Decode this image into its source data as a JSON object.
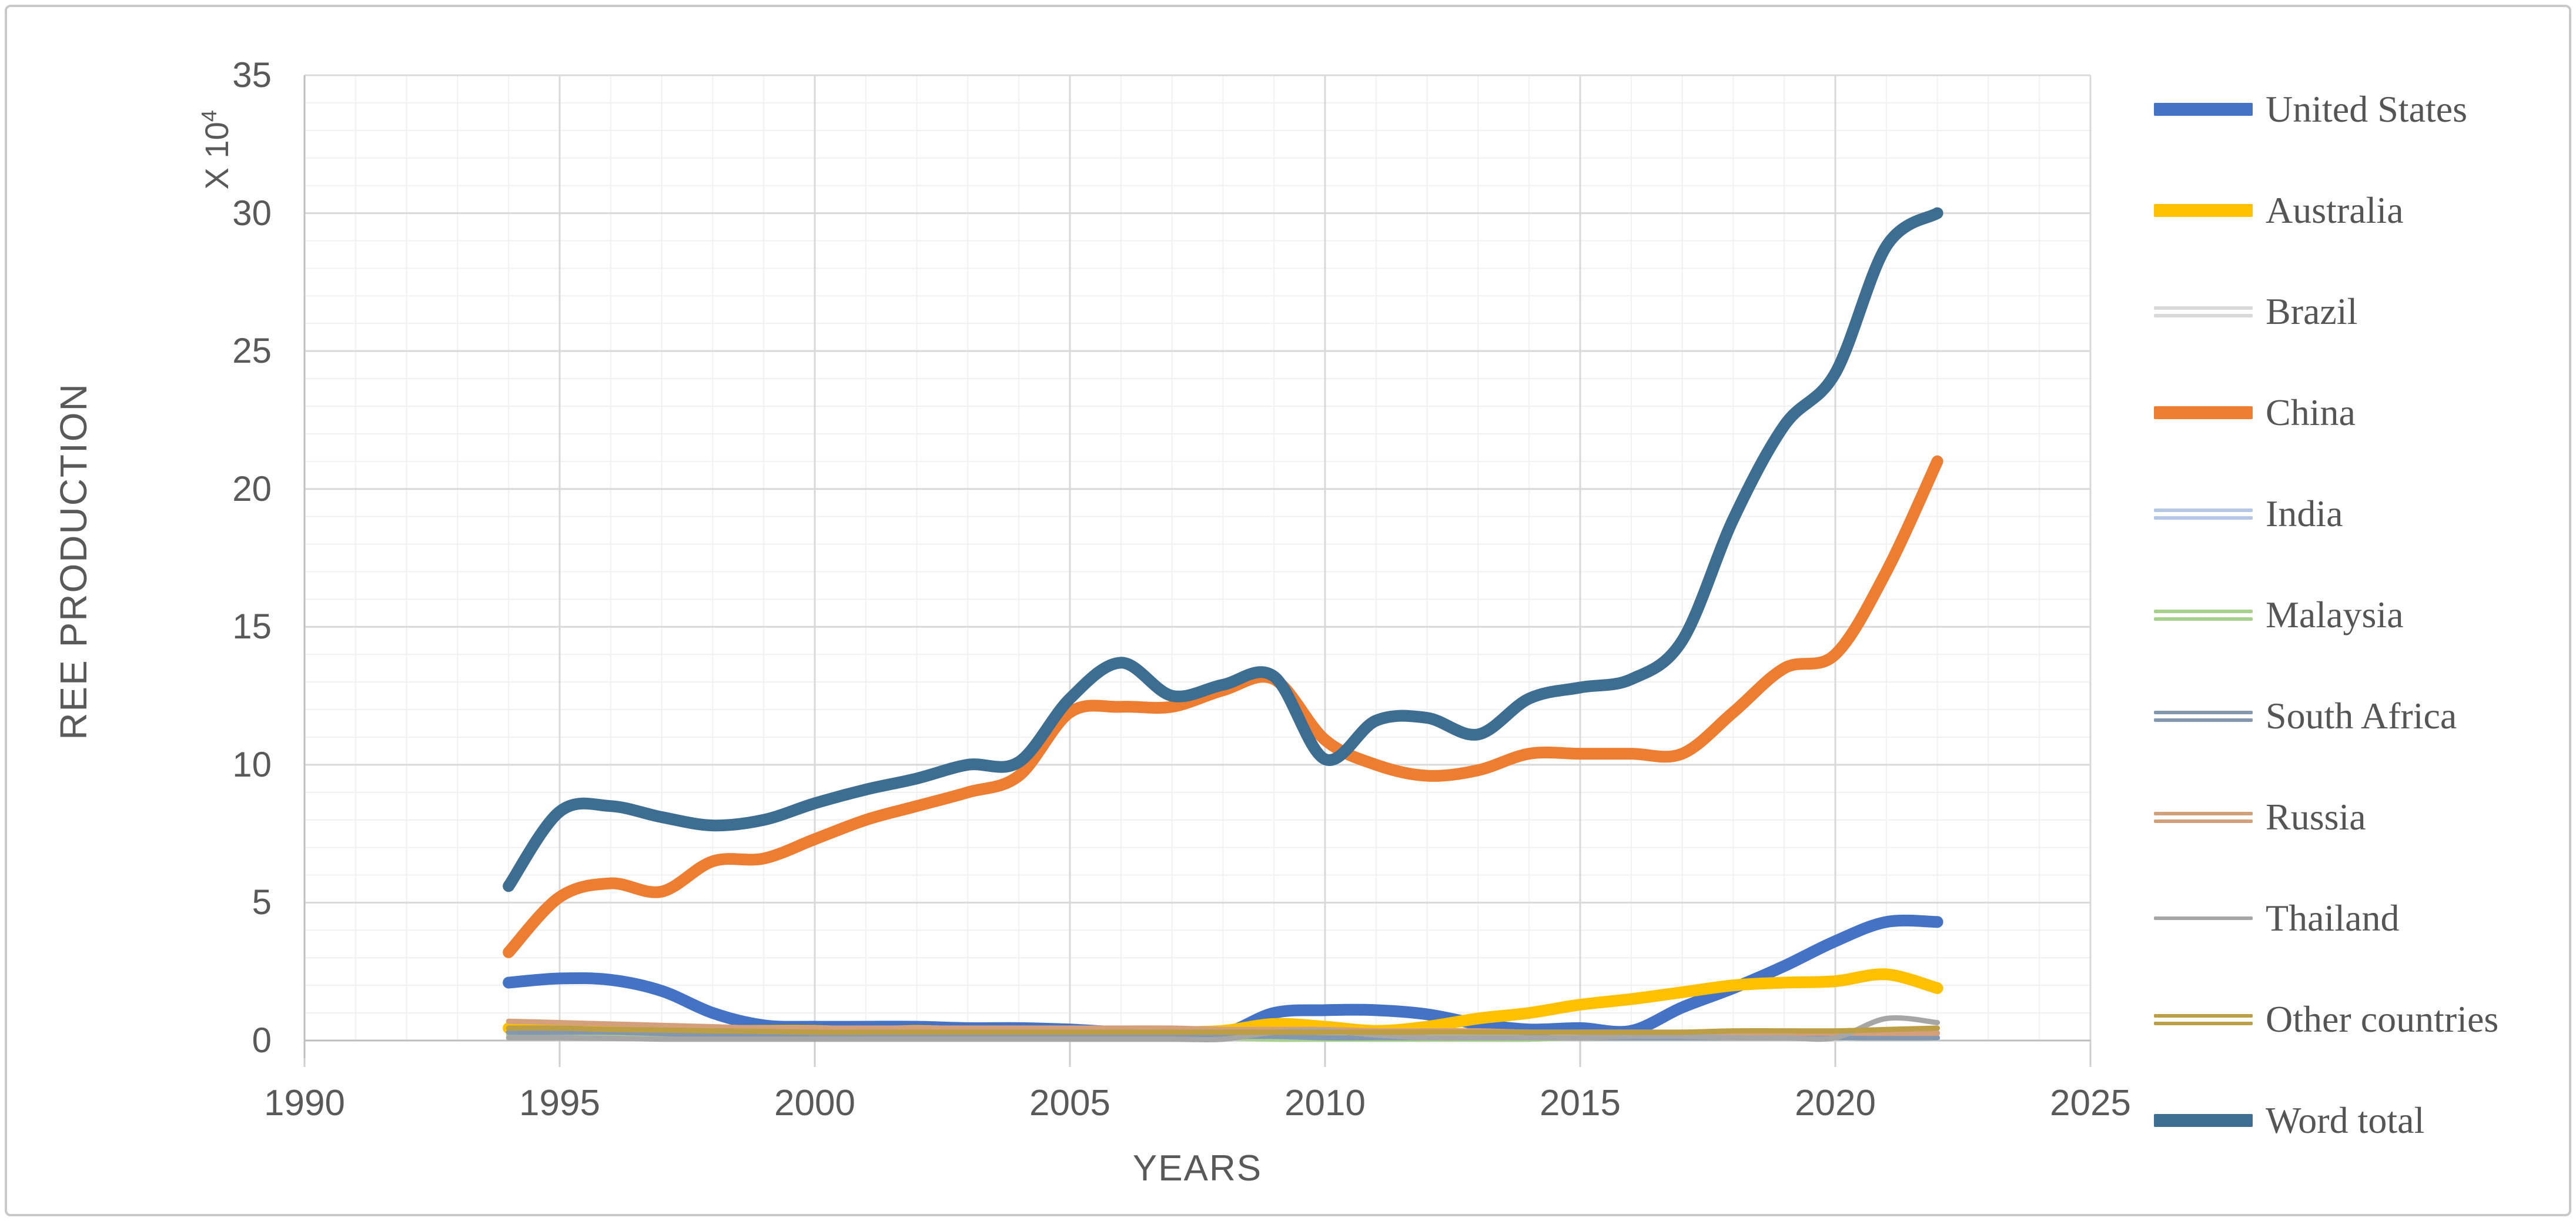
{
  "axes": {
    "x_title": "YEARS",
    "y_title": "REE PRODUCTION",
    "y_unit_base": "X 10",
    "y_unit_exp": "4",
    "x_ticks": [
      "1990",
      "1995",
      "2000",
      "2005",
      "2010",
      "2015",
      "2020",
      "2025"
    ],
    "y_ticks": [
      "0",
      "5",
      "10",
      "15",
      "20",
      "25",
      "30",
      "35"
    ]
  },
  "chart_data": {
    "type": "line",
    "title": "",
    "xlabel": "YEARS",
    "ylabel": "REE PRODUCTION",
    "y_unit_label": "X 10⁴",
    "xlim": [
      1990,
      2025
    ],
    "ylim": [
      0,
      35
    ],
    "grid": "major and minor gridlines on both axes",
    "legend_position": "right",
    "smooth_lines": true,
    "x": [
      1994,
      1995,
      1996,
      1997,
      1998,
      1999,
      2000,
      2001,
      2002,
      2003,
      2004,
      2005,
      2006,
      2007,
      2008,
      2009,
      2010,
      2011,
      2012,
      2013,
      2014,
      2015,
      2016,
      2017,
      2018,
      2019,
      2020,
      2021,
      2022
    ],
    "series": [
      {
        "name": "United States",
        "color": "#4472C4",
        "line": "thick",
        "swatch": "thick",
        "values": [
          2.1,
          2.25,
          2.2,
          1.8,
          1.0,
          0.55,
          0.5,
          0.5,
          0.5,
          0.45,
          0.45,
          0.4,
          0.3,
          0.3,
          0.25,
          1.0,
          1.1,
          1.1,
          0.95,
          0.6,
          0.4,
          0.45,
          0.35,
          1.2,
          1.9,
          2.7,
          3.6,
          4.3,
          4.3
        ]
      },
      {
        "name": "Australia",
        "color": "#FFC000",
        "line": "thick",
        "swatch": "thick",
        "values": [
          0.45,
          0.42,
          0.4,
          0.38,
          0.35,
          0.35,
          0.35,
          0.3,
          0.35,
          0.3,
          0.3,
          0.3,
          0.3,
          0.3,
          0.35,
          0.6,
          0.5,
          0.35,
          0.5,
          0.8,
          1.0,
          1.3,
          1.5,
          1.75,
          2.0,
          2.1,
          2.15,
          2.4,
          1.9
        ]
      },
      {
        "name": "Brazil",
        "color": "#D9D9D9",
        "line": "thin",
        "swatch": "thin-double",
        "values": [
          0.1,
          0.1,
          0.1,
          0.1,
          0.1,
          0.1,
          0.1,
          0.1,
          0.1,
          0.1,
          0.1,
          0.05,
          0.05,
          0.05,
          0.05,
          0.05,
          0.05,
          0.05,
          0.05,
          0.05,
          0.05,
          0.1,
          0.1,
          0.1,
          0.1,
          0.1,
          0.05,
          0.15,
          0.08
        ]
      },
      {
        "name": "China",
        "color": "#ED7D31",
        "line": "thick",
        "swatch": "thick",
        "values": [
          3.2,
          5.2,
          5.7,
          5.4,
          6.5,
          6.6,
          7.3,
          8.0,
          8.5,
          9.0,
          9.6,
          11.9,
          12.1,
          12.1,
          12.7,
          13.1,
          10.9,
          10.0,
          9.6,
          9.8,
          10.4,
          10.4,
          10.4,
          10.4,
          11.9,
          13.5,
          14.0,
          17.0,
          21.0
        ]
      },
      {
        "name": "India",
        "color": "#B4C7E7",
        "line": "thin",
        "swatch": "thin-double",
        "values": [
          0.25,
          0.25,
          0.25,
          0.25,
          0.25,
          0.25,
          0.25,
          0.25,
          0.25,
          0.25,
          0.25,
          0.25,
          0.25,
          0.25,
          0.25,
          0.25,
          0.28,
          0.3,
          0.3,
          0.3,
          0.3,
          0.3,
          0.3,
          0.3,
          0.3,
          0.3,
          0.3,
          0.3,
          0.3
        ]
      },
      {
        "name": "Malaysia",
        "color": "#A9D18E",
        "line": "thin",
        "swatch": "thin-double",
        "values": [
          0.2,
          0.2,
          0.2,
          0.2,
          0.15,
          0.1,
          0.1,
          0.1,
          0.1,
          0.1,
          0.1,
          0.1,
          0.1,
          0.1,
          0.1,
          0.05,
          0.05,
          0.05,
          0.05,
          0.05,
          0.05,
          0.1,
          0.1,
          0.1,
          0.1,
          0.1,
          0.1,
          0.1,
          0.1
        ]
      },
      {
        "name": "South Africa",
        "color": "#8497B0",
        "line": "thin",
        "swatch": "thin-double",
        "values": [
          0.3,
          0.3,
          0.3,
          0.25,
          0.2,
          0.2,
          0.2,
          0.2,
          0.2,
          0.2,
          0.2,
          0.15,
          0.15,
          0.15,
          0.15,
          0.15,
          0.1,
          0.1,
          0.1,
          0.1,
          0.1,
          0.1,
          0.1,
          0.1,
          0.1,
          0.1,
          0.1,
          0.1,
          0.1
        ]
      },
      {
        "name": "Russia",
        "color": "#D4A07C",
        "line": "thin",
        "swatch": "thin-double",
        "values": [
          0.7,
          0.65,
          0.6,
          0.55,
          0.5,
          0.45,
          0.45,
          0.45,
          0.45,
          0.45,
          0.45,
          0.45,
          0.45,
          0.45,
          0.4,
          0.4,
          0.4,
          0.35,
          0.35,
          0.35,
          0.3,
          0.3,
          0.3,
          0.3,
          0.3,
          0.27,
          0.27,
          0.26,
          0.26
        ]
      },
      {
        "name": "Thailand",
        "color": "#A6A6A6",
        "line": "thin",
        "swatch": "thin-single",
        "values": [
          0.1,
          0.1,
          0.08,
          0.05,
          0.05,
          0.05,
          0.05,
          0.05,
          0.05,
          0.05,
          0.05,
          0.05,
          0.05,
          0.05,
          0.05,
          0.3,
          0.35,
          0.2,
          0.1,
          0.1,
          0.1,
          0.1,
          0.15,
          0.15,
          0.1,
          0.1,
          0.1,
          0.8,
          0.65
        ]
      },
      {
        "name": "Other countries",
        "color": "#BC9E46",
        "line": "thin",
        "swatch": "thin-double",
        "values": [
          0.45,
          0.45,
          0.4,
          0.38,
          0.35,
          0.33,
          0.3,
          0.3,
          0.3,
          0.3,
          0.3,
          0.3,
          0.3,
          0.3,
          0.3,
          0.3,
          0.3,
          0.3,
          0.3,
          0.3,
          0.3,
          0.3,
          0.3,
          0.3,
          0.35,
          0.35,
          0.35,
          0.4,
          0.45
        ]
      },
      {
        "name": "Word total",
        "color": "#3D6E91",
        "line": "thick",
        "swatch": "thick",
        "values": [
          5.6,
          8.3,
          8.5,
          8.1,
          7.8,
          8.0,
          8.6,
          9.1,
          9.5,
          10.0,
          10.1,
          12.4,
          13.7,
          12.5,
          12.9,
          13.2,
          10.2,
          11.6,
          11.7,
          11.1,
          12.4,
          12.8,
          13.1,
          14.5,
          18.9,
          22.3,
          24.2,
          28.8,
          30.0
        ]
      }
    ]
  },
  "colors": {
    "major_gridline": "#D9D9D9",
    "minor_gridline": "#F1F1F1",
    "axis_line": "#BFBFBF",
    "tick_mark": "#CFCFCF",
    "tick_label": "#595959",
    "legend_text": "#555555",
    "frame_border": "#C9C9C9"
  }
}
